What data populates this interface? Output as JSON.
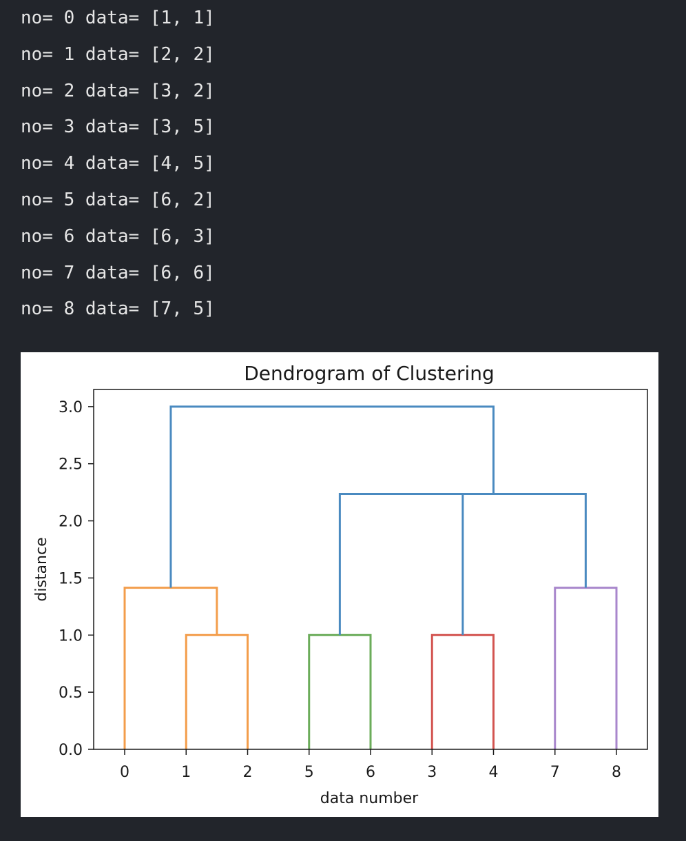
{
  "output": {
    "lines": [
      "no= 0 data= [1, 1]",
      "no= 1 data= [2, 2]",
      "no= 2 data= [3, 2]",
      "no= 3 data= [3, 5]",
      "no= 4 data= [4, 5]",
      "no= 5 data= [6, 2]",
      "no= 6 data= [6, 3]",
      "no= 7 data= [6, 6]",
      "no= 8 data= [7, 5]"
    ]
  },
  "chart_data": {
    "type": "dendrogram",
    "title": "Dendrogram of Clustering",
    "xlabel": "data number",
    "ylabel": "distance",
    "ylim": [
      0,
      3.15
    ],
    "yticks": [
      "0.0",
      "0.5",
      "1.0",
      "1.5",
      "2.0",
      "2.5",
      "3.0"
    ],
    "ytick_values": [
      0,
      0.5,
      1.0,
      1.5,
      2.0,
      2.5,
      3.0
    ],
    "leaf_order": [
      "0",
      "1",
      "2",
      "5",
      "6",
      "3",
      "4",
      "7",
      "8"
    ],
    "merges": [
      {
        "left": "1",
        "right": "2",
        "distance": 1.0,
        "color": "#f39d4b"
      },
      {
        "left": "0",
        "right": "(1,2)",
        "distance": 1.414,
        "color": "#f39d4b"
      },
      {
        "left": "5",
        "right": "6",
        "distance": 1.0,
        "color": "#6bac5a"
      },
      {
        "left": "3",
        "right": "4",
        "distance": 1.0,
        "color": "#d35450"
      },
      {
        "left": "7",
        "right": "8",
        "distance": 1.414,
        "color": "#a886cc"
      },
      {
        "left": "(5,6)",
        "right": "(3,4)",
        "distance": 2.236,
        "color": "#4a8ac0"
      },
      {
        "left": "(5,6,3,4)",
        "right": "(7,8)",
        "distance": 2.236,
        "color": "#4a8ac0"
      },
      {
        "left": "(0,1,2)",
        "right": "(5,6,3,4,7,8)",
        "distance": 3.0,
        "color": "#4a8ac0"
      }
    ],
    "grid": false,
    "legend": "none"
  }
}
